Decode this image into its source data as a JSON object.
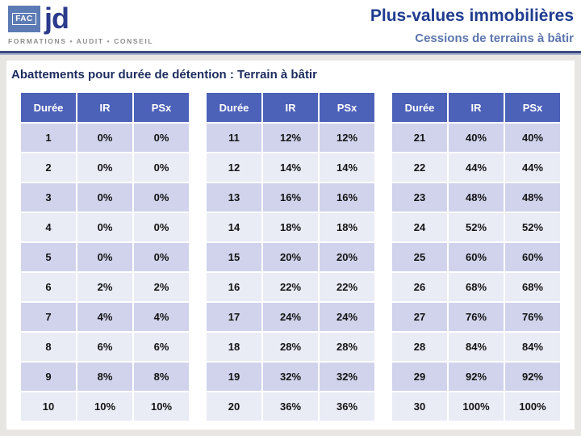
{
  "logo": {
    "fac_label": "FAC",
    "jd_label": "jd",
    "tagline": "FORMATIONS  •  AUDIT  •  CONSEIL"
  },
  "header": {
    "title": "Plus-values immobilières",
    "subtitle": "Cessions de terrains à bâtir"
  },
  "main": {
    "heading": "Abattements pour durée de détention : Terrain à bâtir"
  },
  "tables": [
    {
      "columns": [
        "Durée",
        "IR",
        "PSx"
      ],
      "rows": [
        [
          "1",
          "0%",
          "0%"
        ],
        [
          "2",
          "0%",
          "0%"
        ],
        [
          "3",
          "0%",
          "0%"
        ],
        [
          "4",
          "0%",
          "0%"
        ],
        [
          "5",
          "0%",
          "0%"
        ],
        [
          "6",
          "2%",
          "2%"
        ],
        [
          "7",
          "4%",
          "4%"
        ],
        [
          "8",
          "6%",
          "6%"
        ],
        [
          "9",
          "8%",
          "8%"
        ],
        [
          "10",
          "10%",
          "10%"
        ]
      ]
    },
    {
      "columns": [
        "Durée",
        "IR",
        "PSx"
      ],
      "rows": [
        [
          "11",
          "12%",
          "12%"
        ],
        [
          "12",
          "14%",
          "14%"
        ],
        [
          "13",
          "16%",
          "16%"
        ],
        [
          "14",
          "18%",
          "18%"
        ],
        [
          "15",
          "20%",
          "20%"
        ],
        [
          "16",
          "22%",
          "22%"
        ],
        [
          "17",
          "24%",
          "24%"
        ],
        [
          "18",
          "28%",
          "28%"
        ],
        [
          "19",
          "32%",
          "32%"
        ],
        [
          "20",
          "36%",
          "36%"
        ]
      ]
    },
    {
      "columns": [
        "Durée",
        "IR",
        "PSx"
      ],
      "rows": [
        [
          "21",
          "40%",
          "40%"
        ],
        [
          "22",
          "44%",
          "44%"
        ],
        [
          "23",
          "48%",
          "48%"
        ],
        [
          "24",
          "52%",
          "52%"
        ],
        [
          "25",
          "60%",
          "60%"
        ],
        [
          "26",
          "68%",
          "68%"
        ],
        [
          "27",
          "76%",
          "76%"
        ],
        [
          "28",
          "84%",
          "84%"
        ],
        [
          "29",
          "92%",
          "92%"
        ],
        [
          "30",
          "100%",
          "100%"
        ]
      ]
    }
  ],
  "colors": {
    "table_header_bg": "#4c61b8",
    "row_odd_bg": "#d0d3eb",
    "row_even_bg": "#e9ebf5",
    "title_blue": "#1f3c8f",
    "subtitle_blue": "#5d76ae",
    "heading_navy": "#1c2b5e",
    "logo_jd_navy": "#2b3a8c",
    "logo_fac_box_blue": "#5d7bb4",
    "divider_navy": "#3a4a82",
    "slide_background_gray": "#e8e6e3"
  }
}
